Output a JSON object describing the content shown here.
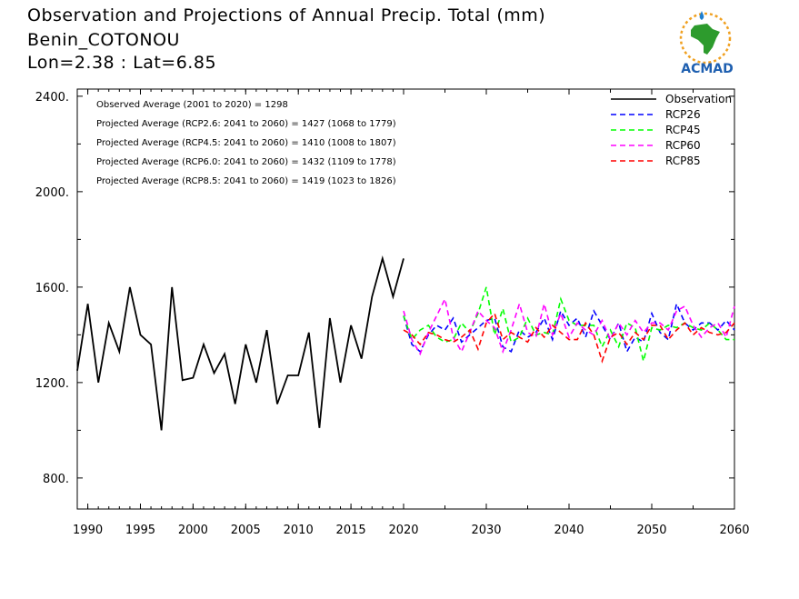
{
  "header": {
    "title": "Observation and Projections of Annual Precip. Total (mm)",
    "location": "Benin_COTONOU",
    "coords": "Lon=2.38 : Lat=6.85"
  },
  "logo": {
    "text": "ACMAD",
    "icon": "africa-map-logo-icon"
  },
  "chart_data": {
    "type": "line",
    "title": "Observation and Projections of Annual Precip. Total (mm)",
    "xlabel": "",
    "ylabel": "",
    "xlim": [
      1989,
      2060
    ],
    "ylim": [
      670,
      2430
    ],
    "x_ticks_left": [
      1990,
      1995,
      2000,
      2005,
      2010,
      2015,
      2020
    ],
    "x_ticks_right": [
      2030,
      2040,
      2050,
      2060
    ],
    "y_ticks": [
      800,
      1200,
      1600,
      2000,
      2400
    ],
    "y_tick_labels": [
      "800.",
      "1200.",
      "1600.",
      "2000.",
      "2400."
    ],
    "annotations": [
      "Observed Average (2001 to 2020) = 1298",
      "Projected Average (RCP2.6: 2041 to 2060) = 1427 (1068 to 1779)",
      "Projected Average (RCP4.5: 2041 to 2060) = 1410 (1008 to 1807)",
      "Projected Average (RCP6.0: 2041 to 2060) = 1432 (1109 to 1778)",
      "Projected Average (RCP8.5: 2041 to 2060) = 1419 (1023 to 1826)"
    ],
    "legend_position": "top-right",
    "series": [
      {
        "name": "Observation",
        "color": "#000000",
        "dash": false,
        "x": [
          1989,
          1990,
          1991,
          1992,
          1993,
          1994,
          1995,
          1996,
          1997,
          1998,
          1999,
          2000,
          2001,
          2002,
          2003,
          2004,
          2005,
          2006,
          2007,
          2008,
          2009,
          2010,
          2011,
          2012,
          2013,
          2014,
          2015,
          2016,
          2017,
          2018,
          2019,
          2020
        ],
        "values": [
          1250,
          1530,
          1200,
          1450,
          1330,
          1600,
          1400,
          1360,
          1000,
          1600,
          1210,
          1220,
          1360,
          1240,
          1320,
          1110,
          1360,
          1200,
          1420,
          1110,
          1230,
          1230,
          1410,
          1010,
          1470,
          1200,
          1440,
          1300,
          1560,
          1720,
          1560,
          1720
        ]
      },
      {
        "name": "RCP26",
        "color": "#0000ff",
        "dash": true,
        "x": [
          2020,
          2021,
          2022,
          2023,
          2024,
          2025,
          2026,
          2027,
          2028,
          2029,
          2030,
          2031,
          2032,
          2033,
          2034,
          2035,
          2036,
          2037,
          2038,
          2039,
          2040,
          2041,
          2042,
          2043,
          2044,
          2045,
          2046,
          2047,
          2048,
          2049,
          2050,
          2051,
          2052,
          2053,
          2054,
          2055,
          2056,
          2057,
          2058,
          2059,
          2060
        ],
        "values": [
          1480,
          1360,
          1330,
          1400,
          1440,
          1420,
          1470,
          1370,
          1400,
          1430,
          1460,
          1470,
          1350,
          1330,
          1420,
          1390,
          1410,
          1470,
          1380,
          1500,
          1440,
          1470,
          1390,
          1500,
          1440,
          1380,
          1450,
          1330,
          1390,
          1370,
          1490,
          1410,
          1380,
          1530,
          1450,
          1420,
          1450,
          1450,
          1420,
          1460,
          1420
        ]
      },
      {
        "name": "RCP45",
        "color": "#00ff00",
        "dash": true,
        "x": [
          2020,
          2021,
          2022,
          2023,
          2024,
          2025,
          2026,
          2027,
          2028,
          2029,
          2030,
          2031,
          2032,
          2033,
          2034,
          2035,
          2036,
          2037,
          2038,
          2039,
          2040,
          2041,
          2042,
          2043,
          2044,
          2045,
          2046,
          2047,
          2048,
          2049,
          2050,
          2051,
          2052,
          2053,
          2054,
          2055,
          2056,
          2057,
          2058,
          2059,
          2060
        ],
        "values": [
          1480,
          1380,
          1420,
          1440,
          1390,
          1370,
          1380,
          1450,
          1410,
          1490,
          1600,
          1400,
          1510,
          1370,
          1390,
          1470,
          1400,
          1410,
          1400,
          1550,
          1460,
          1440,
          1440,
          1440,
          1350,
          1420,
          1350,
          1450,
          1430,
          1290,
          1430,
          1420,
          1440,
          1430,
          1450,
          1430,
          1420,
          1450,
          1420,
          1380,
          1380
        ]
      },
      {
        "name": "RCP60",
        "color": "#ff00ff",
        "dash": true,
        "x": [
          2020,
          2021,
          2022,
          2023,
          2024,
          2025,
          2026,
          2027,
          2028,
          2029,
          2030,
          2031,
          2032,
          2033,
          2034,
          2035,
          2036,
          2037,
          2038,
          2039,
          2040,
          2041,
          2042,
          2043,
          2044,
          2045,
          2046,
          2047,
          2048,
          2049,
          2050,
          2051,
          2052,
          2053,
          2054,
          2055,
          2056,
          2057,
          2058,
          2059,
          2060
        ],
        "values": [
          1500,
          1380,
          1320,
          1410,
          1480,
          1550,
          1390,
          1330,
          1410,
          1500,
          1460,
          1430,
          1330,
          1420,
          1530,
          1410,
          1390,
          1530,
          1400,
          1490,
          1390,
          1450,
          1420,
          1400,
          1460,
          1380,
          1450,
          1400,
          1460,
          1410,
          1450,
          1450,
          1420,
          1500,
          1520,
          1440,
          1390,
          1430,
          1450,
          1390,
          1520
        ]
      },
      {
        "name": "RCP85",
        "color": "#ff0000",
        "dash": true,
        "x": [
          2020,
          2021,
          2022,
          2023,
          2024,
          2025,
          2026,
          2027,
          2028,
          2029,
          2030,
          2031,
          2032,
          2033,
          2034,
          2035,
          2036,
          2037,
          2038,
          2039,
          2040,
          2041,
          2042,
          2043,
          2044,
          2045,
          2046,
          2047,
          2048,
          2049,
          2050,
          2051,
          2052,
          2053,
          2054,
          2055,
          2056,
          2057,
          2058,
          2059,
          2060
        ],
        "values": [
          1420,
          1400,
          1360,
          1410,
          1400,
          1380,
          1370,
          1390,
          1420,
          1340,
          1450,
          1490,
          1380,
          1410,
          1390,
          1370,
          1430,
          1390,
          1440,
          1410,
          1380,
          1380,
          1450,
          1400,
          1290,
          1390,
          1410,
          1360,
          1410,
          1380,
          1440,
          1440,
          1380,
          1420,
          1450,
          1400,
          1430,
          1410,
          1400,
          1410,
          1450
        ]
      }
    ]
  }
}
